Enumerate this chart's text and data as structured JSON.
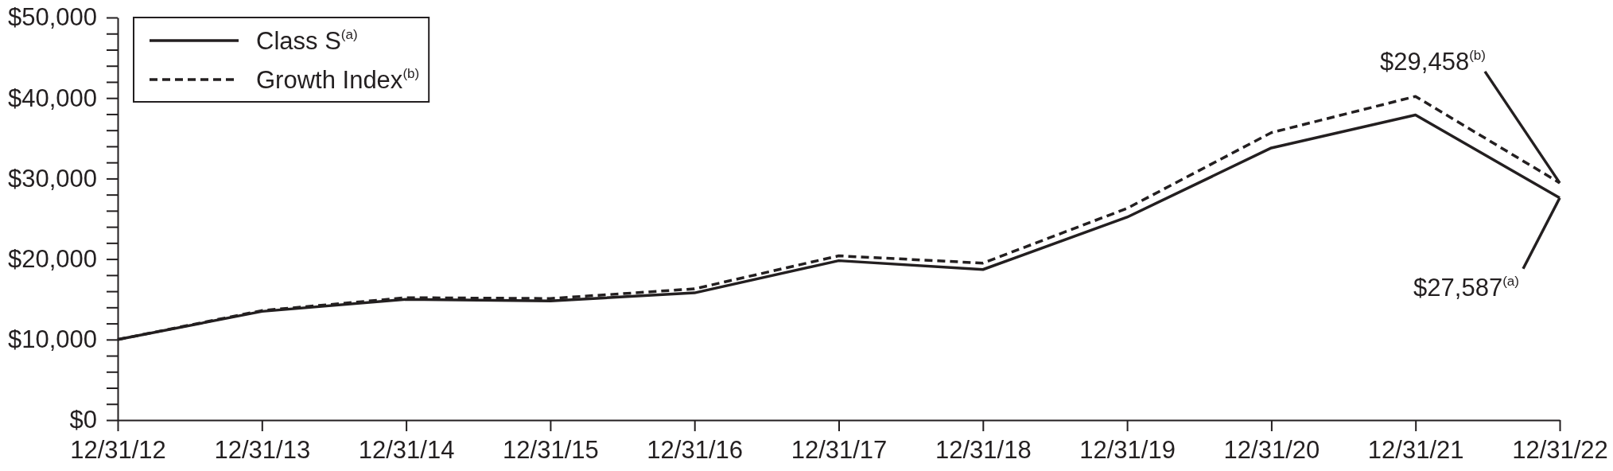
{
  "chart_data": {
    "type": "line",
    "categories": [
      "12/31/12",
      "12/31/13",
      "12/31/14",
      "12/31/15",
      "12/31/16",
      "12/31/17",
      "12/31/18",
      "12/31/19",
      "12/31/20",
      "12/31/21",
      "12/31/22"
    ],
    "series": [
      {
        "name": "Class S$^{(a)}$",
        "color": "#231f20",
        "line_style": "solid",
        "values": [
          10000,
          13500,
          15000,
          14800,
          15800,
          19800,
          18700,
          25200,
          33800,
          37900,
          27587
        ]
      },
      {
        "name": "Growth Index$^{(b)}$",
        "color": "#231f20",
        "line_style": "dashed",
        "values": [
          10000,
          13600,
          15200,
          15100,
          16300,
          20400,
          19500,
          26300,
          35700,
          40200,
          29458
        ]
      }
    ],
    "ylim": [
      0,
      50000
    ],
    "yticks": [
      {
        "value": 0,
        "label": "$0"
      },
      {
        "value": 2000,
        "label": null
      },
      {
        "value": 4000,
        "label": null
      },
      {
        "value": 6000,
        "label": null
      },
      {
        "value": 8000,
        "label": null
      },
      {
        "value": 10000,
        "label": "$10,000"
      },
      {
        "value": 12000,
        "label": null
      },
      {
        "value": 14000,
        "label": null
      },
      {
        "value": 16000,
        "label": null
      },
      {
        "value": 18000,
        "label": null
      },
      {
        "value": 20000,
        "label": "$20,000"
      },
      {
        "value": 22000,
        "label": null
      },
      {
        "value": 24000,
        "label": null
      },
      {
        "value": 26000,
        "label": null
      },
      {
        "value": 28000,
        "label": null
      },
      {
        "value": 30000,
        "label": "$30,000"
      },
      {
        "value": 32000,
        "label": null
      },
      {
        "value": 34000,
        "label": null
      },
      {
        "value": 36000,
        "label": null
      },
      {
        "value": 38000,
        "label": null
      },
      {
        "value": 40000,
        "label": "$40,000"
      },
      {
        "value": 42000,
        "label": null
      },
      {
        "value": 44000,
        "label": null
      },
      {
        "value": 46000,
        "label": null
      },
      {
        "value": 48000,
        "label": null
      },
      {
        "value": 50000,
        "label": "$50,000"
      }
    ],
    "legend": "top left",
    "annotations": [
      {
        "text": "$29,458$^{(b)}$",
        "x": "12/31/22",
        "y": 29458
      },
      {
        "text": "$27,587$^{(a)}$",
        "x": "12/31/22",
        "y": 27587
      }
    ]
  }
}
